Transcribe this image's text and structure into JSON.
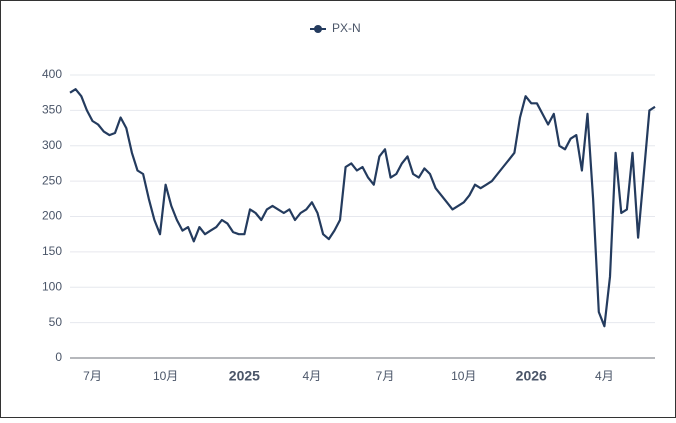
{
  "chart_data": {
    "type": "line",
    "categories": [
      null,
      null,
      null,
      null,
      "7月",
      null,
      null,
      null,
      null,
      null,
      null,
      null,
      null,
      null,
      null,
      null,
      null,
      "10月",
      null,
      null,
      null,
      null,
      null,
      null,
      null,
      null,
      null,
      null,
      null,
      null,
      null,
      "2025",
      null,
      null,
      null,
      null,
      null,
      null,
      null,
      null,
      null,
      null,
      null,
      "4月",
      null,
      null,
      null,
      null,
      null,
      null,
      null,
      null,
      null,
      null,
      null,
      null,
      "7月",
      null,
      null,
      null,
      null,
      null,
      null,
      null,
      null,
      null,
      null,
      null,
      null,
      null,
      "10月",
      null,
      null,
      null,
      null,
      null,
      null,
      null,
      null,
      null,
      null,
      null,
      "2026",
      null,
      null,
      null,
      null,
      null,
      null,
      null,
      null,
      null,
      null,
      null,
      null,
      "4月",
      null,
      null,
      null,
      null,
      null,
      null,
      null,
      null,
      null
    ],
    "series": [
      {
        "name": "PX-N",
        "color": "#243b5e",
        "values": [
          375,
          380,
          370,
          350,
          335,
          330,
          320,
          315,
          318,
          340,
          325,
          290,
          265,
          260,
          225,
          195,
          175,
          245,
          215,
          195,
          180,
          185,
          165,
          185,
          175,
          180,
          185,
          195,
          190,
          178,
          175,
          175,
          210,
          205,
          195,
          210,
          215,
          210,
          205,
          210,
          195,
          205,
          210,
          220,
          205,
          175,
          168,
          180,
          195,
          270,
          275,
          265,
          270,
          255,
          245,
          285,
          295,
          255,
          260,
          275,
          285,
          260,
          255,
          268,
          260,
          240,
          230,
          220,
          210,
          215,
          220,
          230,
          245,
          240,
          245,
          250,
          260,
          270,
          280,
          290,
          340,
          370,
          360,
          360,
          345,
          330,
          345,
          300,
          295,
          310,
          315,
          265,
          345,
          225,
          65,
          45,
          115,
          290,
          205,
          210,
          290,
          170,
          260,
          350,
          355
        ]
      }
    ],
    "ylim": [
      0,
      400
    ],
    "yticks": [
      0,
      50,
      100,
      150,
      200,
      250,
      300,
      350,
      400
    ],
    "grid": true
  }
}
